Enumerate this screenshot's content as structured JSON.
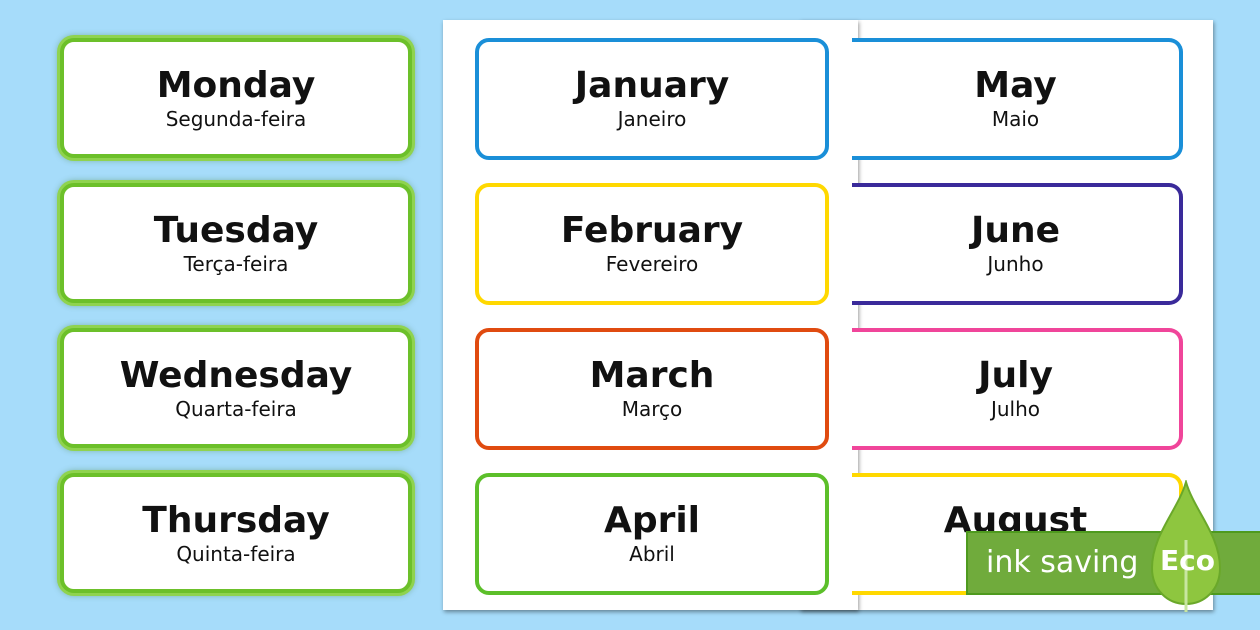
{
  "days": [
    {
      "en": "Monday",
      "pt": "Segunda-feira"
    },
    {
      "en": "Tuesday",
      "pt": "Terça-feira"
    },
    {
      "en": "Wednesday",
      "pt": "Quarta-feira"
    },
    {
      "en": "Thursday",
      "pt": "Quinta-feira"
    }
  ],
  "page1": [
    {
      "en": "January",
      "pt": "Janeiro",
      "color": "#1a8fd8"
    },
    {
      "en": "February",
      "pt": "Fevereiro",
      "color": "#ffd800"
    },
    {
      "en": "March",
      "pt": "Março",
      "color": "#e04b10"
    },
    {
      "en": "April",
      "pt": "Abril",
      "color": "#5cbf2a"
    }
  ],
  "page2": [
    {
      "en": "May",
      "pt": "Maio",
      "color": "#1a8fd8"
    },
    {
      "en": "June",
      "pt": "Junho",
      "color": "#3a2a9a"
    },
    {
      "en": "July",
      "pt": "Julho",
      "color": "#f0459a"
    },
    {
      "en": "August",
      "pt": "",
      "color": "#ffd800"
    }
  ],
  "badge": {
    "label": "ink saving",
    "eco": "Eco",
    "color": "#70ab3c"
  }
}
